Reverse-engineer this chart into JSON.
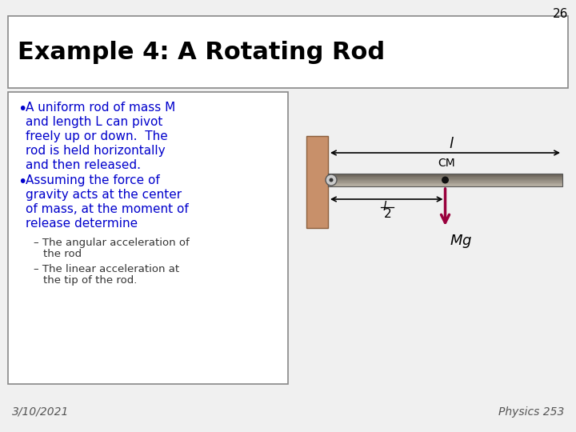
{
  "slide_number": "26",
  "title": "Example 4: A Rotating Rod",
  "bullet1_lines": [
    "A uniform rod of mass M",
    "and length L can pivot",
    "freely up or down.  The",
    "rod is held horizontally",
    "and then released."
  ],
  "bullet2_lines": [
    "Assuming the force of",
    "gravity acts at the center",
    "of mass, at the moment of",
    "release determine"
  ],
  "sub1_lines": [
    "The angular acceleration of",
    "the rod"
  ],
  "sub2_lines": [
    "The linear acceleration at",
    "the tip of the rod."
  ],
  "date": "3/10/2021",
  "course": "Physics 253",
  "bg_color": "#f0f0f0",
  "title_box_color": "#ffffff",
  "text_box_color": "#ffffff",
  "title_color": "#000000",
  "bullet_color": "#0000cc",
  "sub_color": "#333333",
  "wall_color": "#c8906a",
  "arrow_color": "#99003d",
  "slide_num_color": "#000000"
}
